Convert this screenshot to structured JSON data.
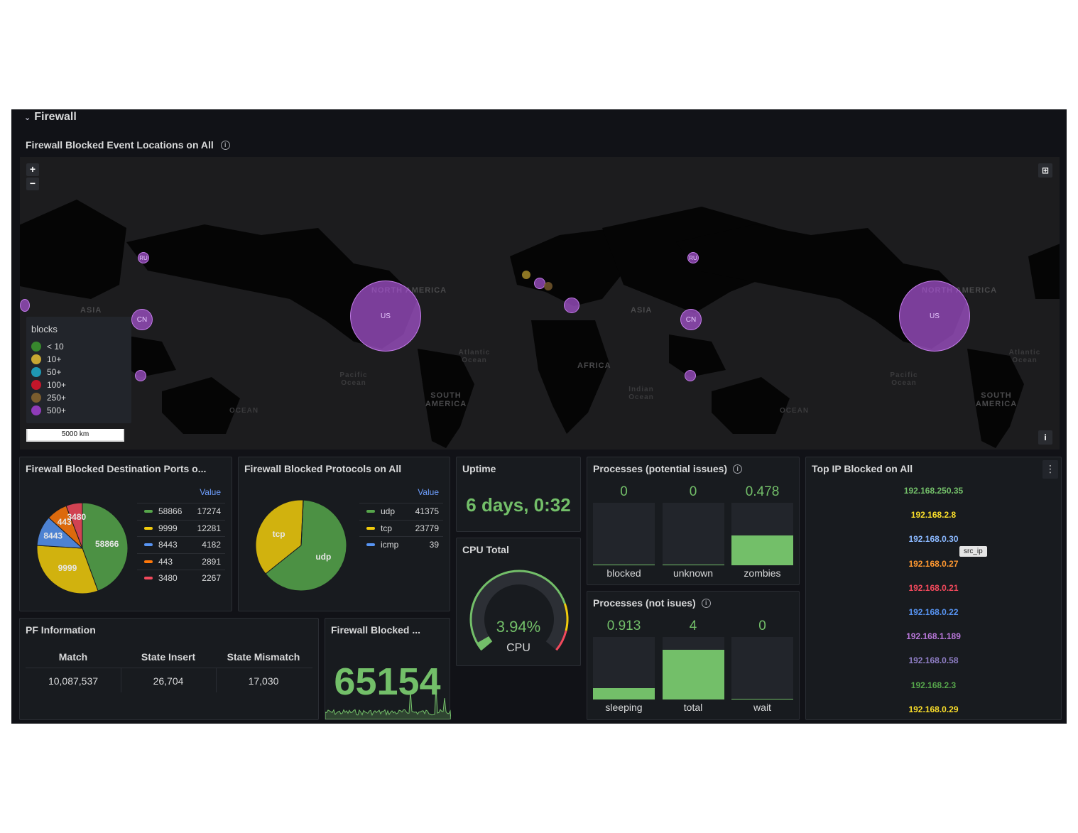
{
  "row": {
    "title": "Firewall"
  },
  "map_panel": {
    "title": "Firewall Blocked Event Locations on All",
    "zoom_in": "+",
    "zoom_out": "−",
    "legend": {
      "title": "blocks",
      "items": [
        {
          "label": "< 10",
          "color": "#37872d"
        },
        {
          "label": "10+",
          "color": "#c8a632"
        },
        {
          "label": "50+",
          "color": "#1f98b3"
        },
        {
          "label": "100+",
          "color": "#c4162a"
        },
        {
          "label": "250+",
          "color": "#7a5c2e"
        },
        {
          "label": "500+",
          "color": "#8f3bb8"
        }
      ]
    },
    "scale": "5000 km",
    "info_button": "i",
    "oceans": [
      "Pacific Ocean",
      "Atlantic Ocean",
      "Indian Ocean",
      "OCEAN"
    ],
    "continents": [
      "NORTH AMERICA",
      "SOUTH AMERICA",
      "AFRICA",
      "ASIA"
    ],
    "bubbles": [
      "US",
      "CN",
      "RU",
      "US",
      "CN",
      "RU"
    ]
  },
  "ports_panel": {
    "title": "Firewall Blocked Destination Ports o...",
    "value_header": "Value",
    "rows": [
      {
        "name": "58866",
        "value": "17274",
        "color": "#56a64b"
      },
      {
        "name": "9999",
        "value": "12281",
        "color": "#f2cc0c"
      },
      {
        "name": "8443",
        "value": "4182",
        "color": "#5794f2"
      },
      {
        "name": "443",
        "value": "2891",
        "color": "#ff780a"
      },
      {
        "name": "3480",
        "value": "2267",
        "color": "#f2495c"
      }
    ],
    "slice_labels": [
      "58866",
      "9999",
      "8443",
      "443",
      "3480"
    ]
  },
  "protocols_panel": {
    "title": "Firewall Blocked Protocols on All",
    "value_header": "Value",
    "rows": [
      {
        "name": "udp",
        "value": "41375",
        "color": "#56a64b"
      },
      {
        "name": "tcp",
        "value": "23779",
        "color": "#f2cc0c"
      },
      {
        "name": "icmp",
        "value": "39",
        "color": "#5794f2"
      }
    ],
    "slice_labels": [
      "tcp",
      "udp"
    ]
  },
  "uptime_panel": {
    "title": "Uptime",
    "value": "6 days, 0:32"
  },
  "cpu_panel": {
    "title": "CPU Total",
    "value": "3.94%",
    "label": "CPU",
    "level": 0.0394
  },
  "proc_issues_panel": {
    "title": "Processes (potential issues)",
    "bars": [
      {
        "label": "blocked",
        "value": "0",
        "level": 0
      },
      {
        "label": "unknown",
        "value": "0",
        "level": 0
      },
      {
        "label": "zombies",
        "value": "0.478",
        "level": 0.478
      }
    ]
  },
  "proc_ok_panel": {
    "title": "Processes (not isues)",
    "bars": [
      {
        "label": "sleeping",
        "value": "0.913",
        "level": 0.18
      },
      {
        "label": "total",
        "value": "4",
        "level": 0.8
      },
      {
        "label": "wait",
        "value": "0",
        "level": 0
      }
    ]
  },
  "top_ip_panel": {
    "title": "Top IP Blocked on All",
    "menu": "⋮",
    "tooltip": "src_ip",
    "ips": [
      {
        "ip": "192.168.250.35",
        "color": "#73bf69"
      },
      {
        "ip": "192.168.2.8",
        "color": "#fade2a"
      },
      {
        "ip": "192.168.0.30",
        "color": "#8ab8ff"
      },
      {
        "ip": "192.168.0.27",
        "color": "#ff9830"
      },
      {
        "ip": "192.168.0.21",
        "color": "#f2495c"
      },
      {
        "ip": "192.168.0.22",
        "color": "#5794f2"
      },
      {
        "ip": "192.168.1.189",
        "color": "#b877d9"
      },
      {
        "ip": "192.168.0.58",
        "color": "#8f7ec5"
      },
      {
        "ip": "192.168.2.3",
        "color": "#56a64b"
      },
      {
        "ip": "192.168.0.29",
        "color": "#fade2a"
      }
    ]
  },
  "pf_panel": {
    "title": "PF Information",
    "columns": [
      "Match",
      "State Insert",
      "State Mismatch"
    ],
    "values": [
      "10,087,537",
      "26,704",
      "17,030"
    ]
  },
  "fw_blocked_panel": {
    "title": "Firewall Blocked ...",
    "value": "65154"
  },
  "colors": {
    "green": "#73bf69",
    "background": "#111217",
    "panel": "#181b1f"
  }
}
